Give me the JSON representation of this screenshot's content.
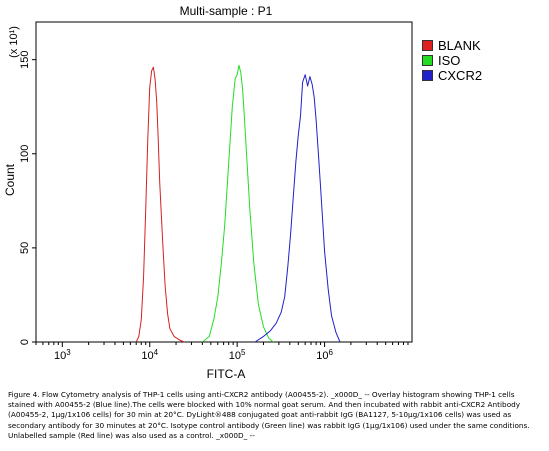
{
  "chart_data": {
    "type": "line",
    "title": "Multi-sample : P1",
    "xlabel": "FITC-A",
    "ylabel": "Count",
    "y_multiplier_label": "(x 10¹)",
    "x_scale": "log",
    "xlim": [
      500,
      10000000
    ],
    "ylim": [
      0,
      170
    ],
    "x_ticks": [
      {
        "value": 1000,
        "base": "10",
        "exp": "3"
      },
      {
        "value": 10000,
        "base": "10",
        "exp": "4"
      },
      {
        "value": 100000,
        "base": "10",
        "exp": "5"
      },
      {
        "value": 1000000,
        "base": "10",
        "exp": "6"
      }
    ],
    "y_ticks": [
      0,
      50,
      100,
      150
    ],
    "grid": false,
    "legend": "right",
    "series": [
      {
        "name": "BLANK",
        "color": "#d42020",
        "x": [
          7000,
          7500,
          8000,
          8500,
          9000,
          9500,
          10000,
          10500,
          11000,
          11500,
          12000,
          12500,
          13000,
          14000,
          15000,
          16000,
          17000,
          19000,
          22000,
          25000
        ],
        "y": [
          0,
          3,
          12,
          35,
          70,
          108,
          135,
          144,
          146,
          140,
          128,
          108,
          85,
          55,
          30,
          15,
          7,
          3,
          1,
          0
        ]
      },
      {
        "name": "ISO",
        "color": "#22dd22",
        "x": [
          40000,
          48000,
          54000,
          60000,
          66000,
          72000,
          80000,
          88000,
          95000,
          100000,
          105000,
          110000,
          115000,
          120000,
          130000,
          140000,
          155000,
          175000,
          200000,
          230000,
          260000
        ],
        "y": [
          0,
          3,
          12,
          24,
          42,
          62,
          95,
          125,
          140,
          142,
          147,
          143,
          135,
          122,
          95,
          70,
          42,
          20,
          8,
          2,
          0
        ]
      },
      {
        "name": "CXCR2",
        "color": "#2020cc",
        "x": [
          160000,
          200000,
          240000,
          280000,
          320000,
          350000,
          380000,
          410000,
          440000,
          470000,
          500000,
          530000,
          560000,
          600000,
          640000,
          680000,
          720000,
          760000,
          800000,
          850000,
          900000,
          950000,
          1000000,
          1100000,
          1200000,
          1350000,
          1500000
        ],
        "y": [
          0,
          3,
          6,
          10,
          16,
          24,
          40,
          58,
          78,
          96,
          110,
          120,
          138,
          142,
          136,
          141,
          137,
          130,
          118,
          100,
          82,
          65,
          48,
          28,
          14,
          5,
          0
        ]
      }
    ]
  },
  "caption": "Figure 4. Flow Cytometry analysis of THP-1 cells using anti-CXCR2 antibody (A00455-2). _x000D_ -- Overlay histogram showing THP-1 cells stained with A00455-2 (Blue line).The cells were blocked with 10% normal goat serum. And then incubated with rabbit anti-CXCR2 Antibody (A00455-2, 1μg/1x106 cells) for 30 min at 20°C. DyLight®488 conjugated goat anti-rabbit IgG (BA1127, 5-10μg/1x106 cells) was used as secondary antibody for 30 minutes at 20°C. Isotype control antibody (Green line) was rabbit IgG (1μg/1x106) used under the same conditions. Unlabelled sample (Red line) was also used as a control. _x000D_ --"
}
